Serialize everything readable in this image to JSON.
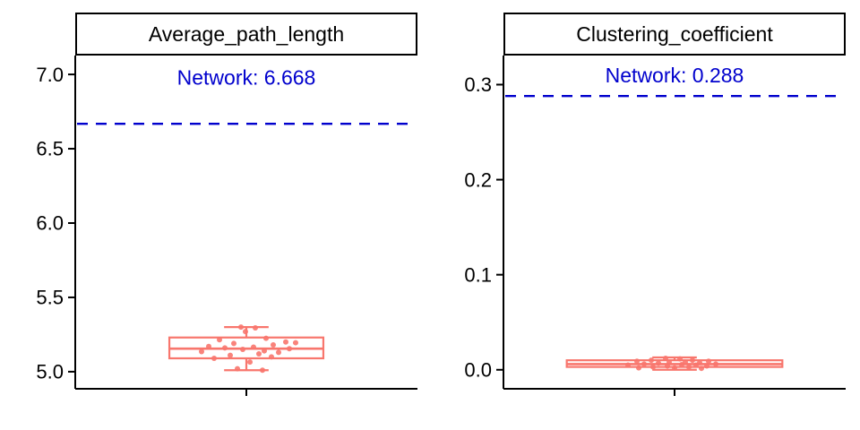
{
  "colors": {
    "box": "#F8766D",
    "dashed_line": "#0000CD",
    "annotation_text": "#0000CD",
    "axis": "#000000",
    "text": "#000000",
    "strip_border": "#000000",
    "strip_bg": "#ffffff",
    "background": "#ffffff"
  },
  "chart_data": [
    {
      "type": "boxplot",
      "title": "Average_path_length",
      "xlabel": "",
      "ylabel": "",
      "ylim": [
        4.885,
        7.127
      ],
      "yticks": [
        5.0,
        5.5,
        6.0,
        6.5,
        7.0
      ],
      "ytick_labels": [
        "5.0",
        "5.5",
        "6.0",
        "6.5",
        "7.0"
      ],
      "reference_line": {
        "value": 6.668,
        "label": "Network: 6.668",
        "label_y": 6.98
      },
      "box": {
        "whisker_low": 5.01,
        "q1": 5.09,
        "median": 5.155,
        "q3": 5.23,
        "whisker_high": 5.3,
        "width_frac": 0.45,
        "cap_frac": 0.13
      },
      "points": [
        {
          "jx": -6,
          "y": 5.3
        },
        {
          "jx": 10,
          "y": 5.295
        },
        {
          "jx": -1,
          "y": 5.27
        },
        {
          "jx": 22,
          "y": 5.225
        },
        {
          "jx": -30,
          "y": 5.215
        },
        {
          "jx": 44,
          "y": 5.2
        },
        {
          "jx": 55,
          "y": 5.195
        },
        {
          "jx": -14,
          "y": 5.19
        },
        {
          "jx": 30,
          "y": 5.18
        },
        {
          "jx": -42,
          "y": 5.17
        },
        {
          "jx": 8,
          "y": 5.165
        },
        {
          "jx": -24,
          "y": 5.16
        },
        {
          "jx": 48,
          "y": 5.155
        },
        {
          "jx": -4,
          "y": 5.15
        },
        {
          "jx": 20,
          "y": 5.14
        },
        {
          "jx": -50,
          "y": 5.135
        },
        {
          "jx": 36,
          "y": 5.13
        },
        {
          "jx": 14,
          "y": 5.12
        },
        {
          "jx": -18,
          "y": 5.11
        },
        {
          "jx": 28,
          "y": 5.1
        },
        {
          "jx": -36,
          "y": 5.09
        },
        {
          "jx": 4,
          "y": 5.065
        },
        {
          "jx": -10,
          "y": 5.02
        },
        {
          "jx": 18,
          "y": 5.01
        }
      ]
    },
    {
      "type": "boxplot",
      "title": "Clustering_coefficient",
      "xlabel": "",
      "ylabel": "",
      "ylim": [
        -0.02,
        0.3306
      ],
      "yticks": [
        0.0,
        0.1,
        0.2,
        0.3
      ],
      "ytick_labels": [
        "0.0",
        "0.1",
        "0.2",
        "0.3"
      ],
      "reference_line": {
        "value": 0.288,
        "label": "Network: 0.288",
        "label_y": 0.31
      },
      "box": {
        "whisker_low": 0.0,
        "q1": 0.003,
        "median": 0.006,
        "q3": 0.01,
        "whisker_high": 0.013,
        "width_frac": 0.63,
        "cap_frac": 0.13
      },
      "points": [
        {
          "jx": -10,
          "y": 0.012
        },
        {
          "jx": 6,
          "y": 0.0115
        },
        {
          "jx": -26,
          "y": 0.01
        },
        {
          "jx": 20,
          "y": 0.01
        },
        {
          "jx": 38,
          "y": 0.009
        },
        {
          "jx": -42,
          "y": 0.009
        },
        {
          "jx": 12,
          "y": 0.008
        },
        {
          "jx": -6,
          "y": 0.008
        },
        {
          "jx": 28,
          "y": 0.0075
        },
        {
          "jx": -18,
          "y": 0.007
        },
        {
          "jx": 46,
          "y": 0.006
        },
        {
          "jx": -34,
          "y": 0.006
        },
        {
          "jx": 8,
          "y": 0.0055
        },
        {
          "jx": -52,
          "y": 0.005
        },
        {
          "jx": 24,
          "y": 0.005
        },
        {
          "jx": -8,
          "y": 0.004
        },
        {
          "jx": 36,
          "y": 0.004
        },
        {
          "jx": -24,
          "y": 0.003
        },
        {
          "jx": 16,
          "y": 0.003
        },
        {
          "jx": 0,
          "y": 0.002
        },
        {
          "jx": -40,
          "y": 0.002
        },
        {
          "jx": 30,
          "y": 0.0015
        }
      ]
    }
  ]
}
